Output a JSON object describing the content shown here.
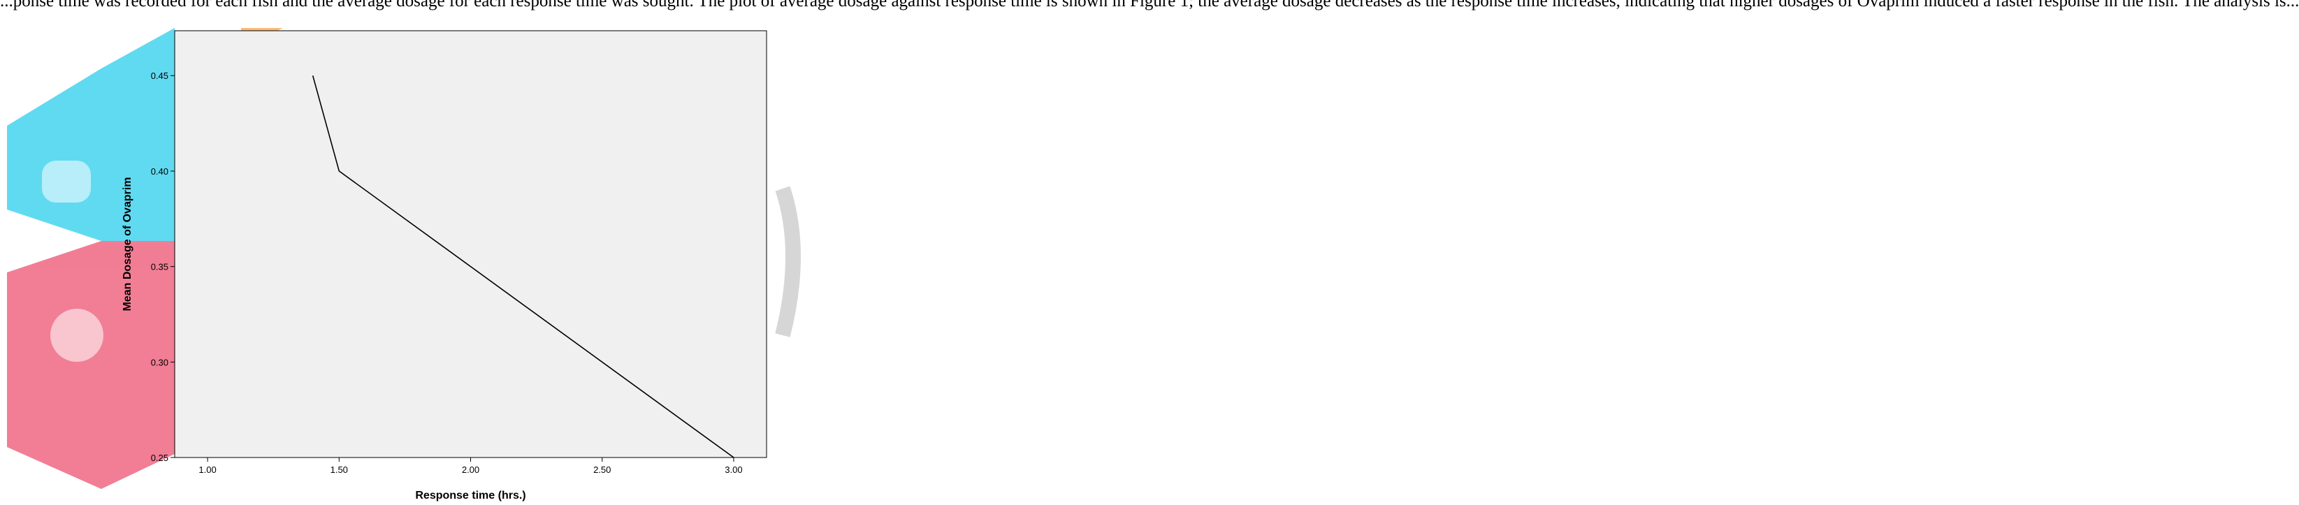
{
  "header": {
    "text": "...ponse time was recorded for each fish and the average dosage for each response time was sought. The plot of average dosage against response time is shown in Figure 1; the average dosage decreases as the response time increases, indicating that higher dosages of Ovaprim induced a faster response in the fish. The analysis is..."
  },
  "watermark": {
    "colors": {
      "cyan": "#4fd6f0",
      "red": "#f0708a",
      "orange": "#f9b56e",
      "grey": "#d2d2d2"
    }
  },
  "chart_data": {
    "type": "line",
    "title": "",
    "xlabel": "Response time (hrs.)",
    "ylabel": "Mean Dosage of Ovaprim",
    "xlim": [
      0.875,
      3.125
    ],
    "ylim": [
      0.25,
      0.4735
    ],
    "x_ticks": [
      1.0,
      1.5,
      2.0,
      2.5,
      3.0
    ],
    "x_tick_labels": [
      "1.00",
      "1.50",
      "2.00",
      "2.50",
      "3.00"
    ],
    "y_ticks": [
      0.25,
      0.3,
      0.35,
      0.4,
      0.45
    ],
    "y_tick_labels": [
      "0.25",
      "0.30",
      "0.35",
      "0.40",
      "0.45"
    ],
    "grid": false,
    "plot_background": "#f0f0f0",
    "line_color": "#000000",
    "series": [
      {
        "x": [
          1.4,
          1.5,
          3.0
        ],
        "y": [
          0.45,
          0.4,
          0.25
        ]
      }
    ]
  }
}
